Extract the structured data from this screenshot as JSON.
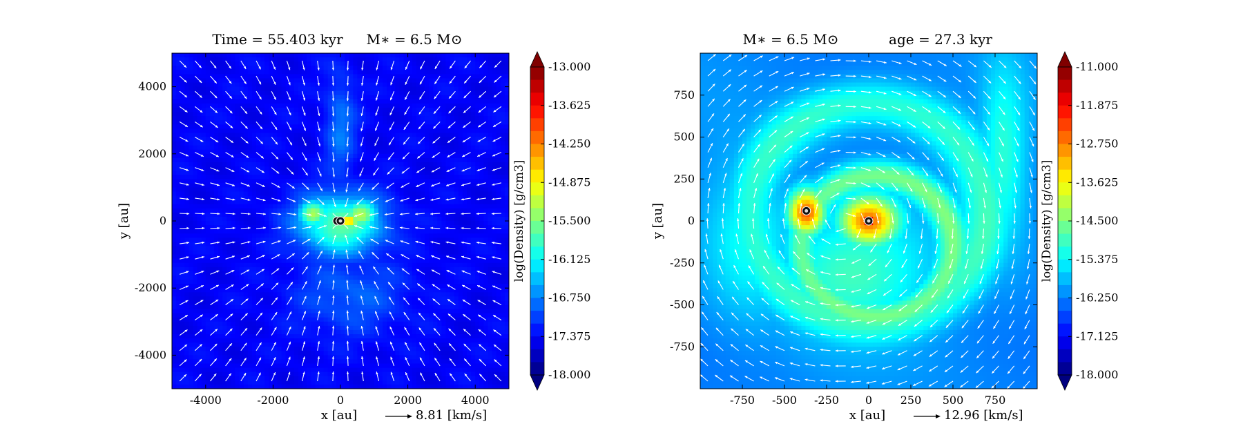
{
  "chart_data": [
    {
      "type": "heatmap",
      "title_left": "Time = 55.403 kyr",
      "title_right": "M∗ = 6.5 M⊙",
      "xlabel": "x [au]",
      "ylabel": "y [au]",
      "xlim": [
        -5000,
        5000
      ],
      "ylim": [
        -5000,
        5000
      ],
      "xticks": [
        -4000,
        -2000,
        0,
        2000,
        4000
      ],
      "xtick_labels": [
        "-4000",
        "-2000",
        "0",
        "2000",
        "4000"
      ],
      "yticks": [
        -4000,
        -2000,
        0,
        2000,
        4000
      ],
      "ytick_labels": [
        "-4000",
        "-2000",
        "0",
        "2000",
        "4000"
      ],
      "velocity_scale_label": "8.81 [km/s]",
      "colorbar": {
        "label": "log(Density) [g/cm3]",
        "min": -18.0,
        "max": -13.0,
        "ticks": [
          -13.0,
          -13.625,
          -14.25,
          -14.875,
          -15.5,
          -16.125,
          -16.75,
          -17.375,
          -18.0
        ],
        "tick_labels": [
          "-13.000",
          "-13.625",
          "-14.250",
          "-14.875",
          "-15.500",
          "-16.125",
          "-16.750",
          "-17.375",
          "-18.000"
        ]
      },
      "colormap": "jet",
      "field": {
        "background": -17.4,
        "features": [
          {
            "kind": "blob",
            "x": 0,
            "y": -100,
            "rx": 1400,
            "ry": 1000,
            "value": -15.6
          },
          {
            "kind": "blob",
            "x": -800,
            "y": 200,
            "rx": 500,
            "ry": 450,
            "value": -15.2
          },
          {
            "kind": "blob",
            "x": 600,
            "y": 200,
            "rx": 600,
            "ry": 500,
            "value": -15.3
          },
          {
            "kind": "blob",
            "x": 0,
            "y": 2800,
            "rx": 500,
            "ry": 1800,
            "value": -16.8
          },
          {
            "kind": "blob",
            "x": 300,
            "y": -2200,
            "rx": 1800,
            "ry": 1300,
            "value": -16.9
          },
          {
            "kind": "blob",
            "x": 250,
            "y": 0,
            "rx": 350,
            "ry": 120,
            "value": -13.8
          },
          {
            "kind": "blob",
            "x": 0,
            "y": 0,
            "rx": 150,
            "ry": 150,
            "value": -13.0
          }
        ]
      },
      "velocity_field": "radial infall toward center",
      "sinks": [
        {
          "x": -100,
          "y": 0
        },
        {
          "x": 0,
          "y": 0
        }
      ]
    },
    {
      "type": "heatmap",
      "title_left": "M∗ = 6.5 M⊙",
      "title_right": "age = 27.3 kyr",
      "xlabel": "x [au]",
      "ylabel": "y [au]",
      "xlim": [
        -1000,
        1000
      ],
      "ylim": [
        -1000,
        1000
      ],
      "xticks": [
        -750,
        -500,
        -250,
        0,
        250,
        500,
        750
      ],
      "xtick_labels": [
        "-750",
        "-500",
        "-250",
        "0",
        "250",
        "500",
        "750"
      ],
      "yticks": [
        -750,
        -500,
        -250,
        0,
        250,
        500,
        750
      ],
      "ytick_labels": [
        "-750",
        "-500",
        "-250",
        "0",
        "250",
        "500",
        "750"
      ],
      "velocity_scale_label": "12.96 [km/s]",
      "colorbar": {
        "label": "log(Density) [g/cm3]",
        "min": -18.0,
        "max": -11.0,
        "ticks": [
          -11.0,
          -11.875,
          -12.75,
          -13.625,
          -14.5,
          -15.375,
          -16.25,
          -17.125,
          -18.0
        ],
        "tick_labels": [
          "-11.000",
          "-11.875",
          "-12.750",
          "-13.625",
          "-14.500",
          "-15.375",
          "-16.250",
          "-17.125",
          "-18.000"
        ]
      },
      "colormap": "jet",
      "field": {
        "background": -16.2,
        "features": [
          {
            "kind": "ring",
            "x": 0,
            "y": 50,
            "rx": 700,
            "ry": 650,
            "value": -15.0
          },
          {
            "kind": "ring",
            "x": 50,
            "y": -150,
            "rx": 450,
            "ry": 420,
            "value": -14.6
          },
          {
            "kind": "blob",
            "x": -100,
            "y": -300,
            "rx": 500,
            "ry": 400,
            "value": -14.9
          },
          {
            "kind": "blob",
            "x": 800,
            "y": 400,
            "rx": 150,
            "ry": 600,
            "value": -15.1
          },
          {
            "kind": "blob",
            "x": -700,
            "y": -100,
            "rx": 300,
            "ry": 500,
            "value": -15.2
          },
          {
            "kind": "blob",
            "x": 0,
            "y": 0,
            "rx": 190,
            "ry": 160,
            "value": -12.6
          },
          {
            "kind": "blob",
            "x": -370,
            "y": 50,
            "rx": 120,
            "ry": 150,
            "value": -12.4
          },
          {
            "kind": "blob",
            "x": 0,
            "y": 0,
            "rx": 60,
            "ry": 60,
            "value": -11.2
          },
          {
            "kind": "blob",
            "x": -370,
            "y": 60,
            "rx": 50,
            "ry": 50,
            "value": -11.2
          }
        ]
      },
      "velocity_field": "rotation around binary",
      "sinks": [
        {
          "x": -370,
          "y": 60
        },
        {
          "x": 0,
          "y": 0
        }
      ]
    }
  ]
}
